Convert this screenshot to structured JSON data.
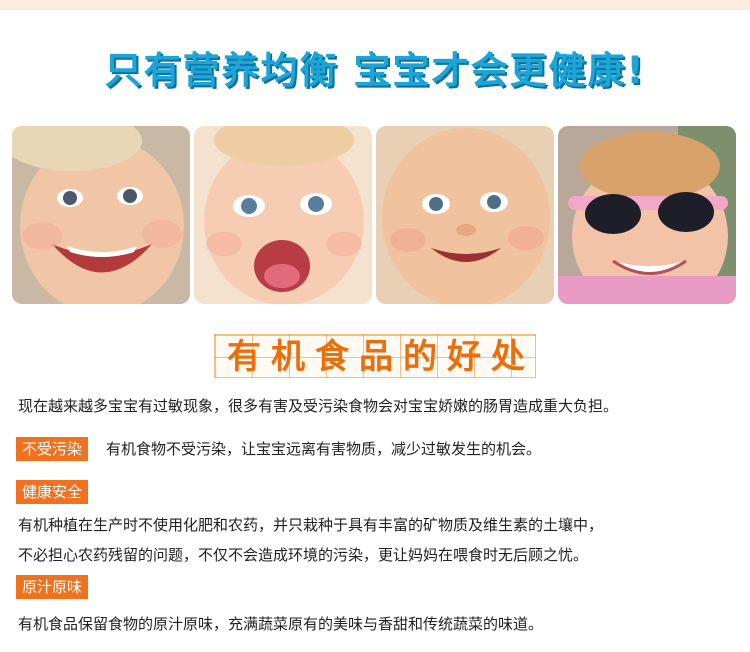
{
  "headline": "只有营养均衡  宝宝才会更健康!",
  "section_title": "有机食品的好处",
  "intro": "现在越来越多宝宝有过敏现象，很多有害及受污染食物会对宝宝娇嫩的肠胃造成重大负担。",
  "benefits": [
    {
      "tag": "不受污染",
      "lines": [
        "有机食物不受污染，让宝宝远离有害物质，减少过敏发生的机会。"
      ]
    },
    {
      "tag": "健康安全",
      "lines": [
        "有机种植在生产时不使用化肥和农药，并只栽种于具有丰富的矿物质及维生素的土壤中，",
        "不必担心农药残留的问题，不仅不会造成环境的污染，更让妈妈在喂食时无后顾之忧。"
      ]
    },
    {
      "tag": "原汁原味",
      "lines": [
        "有机食品保留食物的原汁原味，充满蔬菜原有的美味与香甜和传统蔬菜的味道。"
      ]
    }
  ],
  "colors": {
    "headline": "#1aa6d8",
    "title": "#ea6e0a",
    "tag_bg": "#f2711c"
  }
}
